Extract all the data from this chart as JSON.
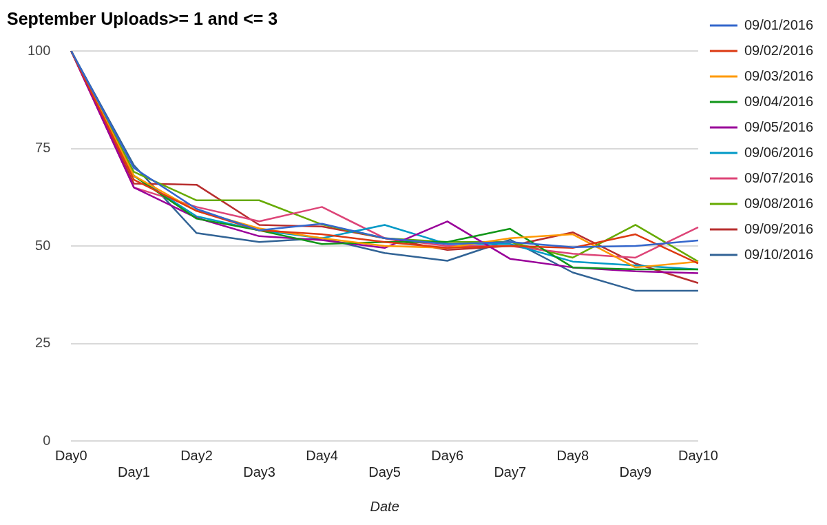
{
  "chart_data": {
    "type": "line",
    "title": "September Uploads>= 1 and <= 3",
    "xlabel": "Date",
    "categories": [
      "Day0",
      "Day1",
      "Day2",
      "Day3",
      "Day4",
      "Day5",
      "Day6",
      "Day7",
      "Day8",
      "Day9",
      "Day10"
    ],
    "ylim": [
      0,
      100
    ],
    "yticks": [
      0,
      25,
      50,
      75,
      100
    ],
    "grid": "y",
    "legend": "right",
    "marker": "none",
    "line_style": "solid",
    "series": [
      {
        "name": "09/01/2016",
        "color": "#3366cc",
        "values": [
          100,
          70,
          59.5,
          54,
          55.7,
          52,
          50.5,
          51,
          49.7,
          50,
          51.4
        ]
      },
      {
        "name": "09/02/2016",
        "color": "#dc3912",
        "values": [
          100,
          67,
          59,
          54,
          53,
          51,
          49.5,
          50,
          49.5,
          53,
          45.5
        ]
      },
      {
        "name": "09/03/2016",
        "color": "#ff9900",
        "values": [
          100,
          68,
          59,
          54.5,
          52,
          50,
          49.5,
          52,
          53,
          44.5,
          46
        ]
      },
      {
        "name": "09/04/2016",
        "color": "#109618",
        "values": [
          100,
          68,
          57,
          54,
          50.5,
          51,
          51,
          54.4,
          44.5,
          44,
          44
        ]
      },
      {
        "name": "09/05/2016",
        "color": "#990099",
        "values": [
          100,
          65,
          57.2,
          52.5,
          51.5,
          49.5,
          56.3,
          46.7,
          44.5,
          43.5,
          43
        ]
      },
      {
        "name": "09/06/2016",
        "color": "#0099c6",
        "values": [
          100,
          68,
          57.6,
          54,
          52,
          55.4,
          50.5,
          50.5,
          46,
          45,
          44
        ]
      },
      {
        "name": "09/07/2016",
        "color": "#dd4477",
        "values": [
          100,
          65,
          60,
          56.3,
          60,
          52,
          50,
          50,
          48,
          47,
          54.8
        ]
      },
      {
        "name": "09/08/2016",
        "color": "#66aa00",
        "values": [
          100,
          69,
          61.7,
          61.7,
          55.5,
          52,
          51,
          51,
          47,
          55.4,
          46
        ]
      },
      {
        "name": "09/09/2016",
        "color": "#b82e2e",
        "values": [
          100,
          66,
          65.7,
          55.4,
          55,
          52,
          49,
          50,
          53.5,
          45.5,
          40.5
        ]
      },
      {
        "name": "09/10/2016",
        "color": "#316395",
        "values": [
          100,
          70.7,
          53.3,
          51,
          52,
          48.2,
          46.2,
          51.6,
          43.2,
          38.5,
          38.5
        ]
      }
    ]
  }
}
